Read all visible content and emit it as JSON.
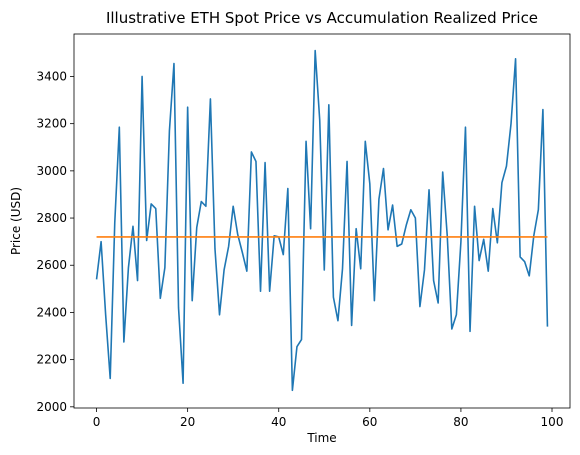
{
  "chart_data": {
    "type": "line",
    "title": "Illustrative ETH Spot Price vs Accumulation Realized Price",
    "xlabel": "Time",
    "ylabel": "Price (USD)",
    "xlim": [
      -4.95,
      103.95
    ],
    "ylim": [
      1995,
      3580
    ],
    "xticks": [
      0,
      20,
      40,
      60,
      80,
      100
    ],
    "yticks": [
      2000,
      2200,
      2400,
      2600,
      2800,
      3000,
      3200,
      3400
    ],
    "grid": false,
    "legend": "none",
    "series": [
      {
        "color": "#1f77b4",
        "x": [
          0,
          1,
          2,
          3,
          4,
          5,
          6,
          7,
          8,
          9,
          10,
          11,
          12,
          13,
          14,
          15,
          16,
          17,
          18,
          19,
          20,
          21,
          22,
          23,
          24,
          25,
          26,
          27,
          28,
          29,
          30,
          31,
          32,
          33,
          34,
          35,
          36,
          37,
          38,
          39,
          40,
          41,
          42,
          43,
          44,
          45,
          46,
          47,
          48,
          49,
          50,
          51,
          52,
          53,
          54,
          55,
          56,
          57,
          58,
          59,
          60,
          61,
          62,
          63,
          64,
          65,
          66,
          67,
          68,
          69,
          70,
          71,
          72,
          73,
          74,
          75,
          76,
          77,
          78,
          79,
          80,
          81,
          82,
          83,
          84,
          85,
          86,
          87,
          88,
          89,
          90,
          91,
          92,
          93,
          94,
          95,
          96,
          97,
          98,
          99
        ],
        "values": [
          2540,
          2700,
          2390,
          2120,
          2780,
          3185,
          2275,
          2590,
          2765,
          2535,
          3400,
          2705,
          2860,
          2840,
          2460,
          2590,
          3170,
          3455,
          2420,
          2100,
          3270,
          2450,
          2760,
          2870,
          2850,
          3305,
          2670,
          2390,
          2580,
          2680,
          2850,
          2730,
          2655,
          2575,
          3080,
          3040,
          2490,
          3035,
          2490,
          2725,
          2720,
          2645,
          2925,
          2070,
          2255,
          2285,
          3125,
          2755,
          3510,
          3215,
          2580,
          3280,
          2465,
          2365,
          2585,
          3040,
          2345,
          2755,
          2585,
          3125,
          2945,
          2450,
          2880,
          3010,
          2750,
          2855,
          2680,
          2690,
          2770,
          2835,
          2800,
          2425,
          2580,
          2920,
          2535,
          2440,
          2995,
          2725,
          2330,
          2390,
          2700,
          3185,
          2320,
          2850,
          2620,
          2710,
          2575,
          2840,
          2695,
          2950,
          3020,
          3200,
          3475,
          2635,
          2615,
          2555,
          2725,
          2835,
          3260,
          2340
        ]
      },
      {
        "color": "#ff7f0e",
        "x": [
          0,
          99
        ],
        "values": [
          2720,
          2720
        ]
      }
    ]
  }
}
